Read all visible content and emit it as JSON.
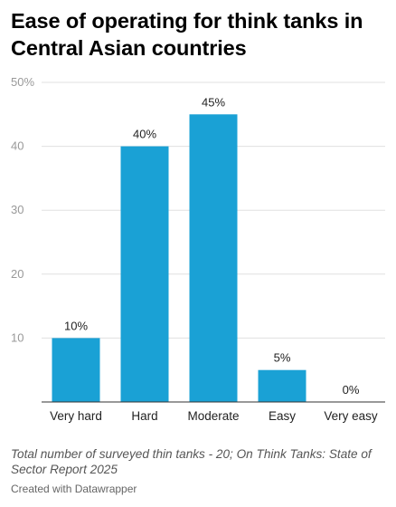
{
  "title": "Ease of operating for think tanks in Central Asian countries",
  "note": "Total number of surveyed thin tanks - 20; On Think Tanks: State of Sector Report 2025",
  "credit": "Created with Datawrapper",
  "colors": {
    "bar": "#1aa1d5",
    "grid": "#e0e0e0",
    "tick": "#999999",
    "axis": "#333333"
  },
  "chart_data": {
    "type": "bar",
    "categories": [
      "Very hard",
      "Hard",
      "Moderate",
      "Easy",
      "Very easy"
    ],
    "values": [
      10,
      40,
      45,
      5,
      0
    ],
    "value_labels": [
      "10%",
      "40%",
      "45%",
      "5%",
      "0%"
    ],
    "ylim": [
      0,
      50
    ],
    "yticks": [
      10,
      20,
      30,
      40,
      50
    ],
    "ytick_labels": [
      "10",
      "20",
      "30",
      "40",
      "50%"
    ],
    "grid": true,
    "title": "Ease of operating for think tanks in Central Asian countries",
    "xlabel": "",
    "ylabel": ""
  }
}
